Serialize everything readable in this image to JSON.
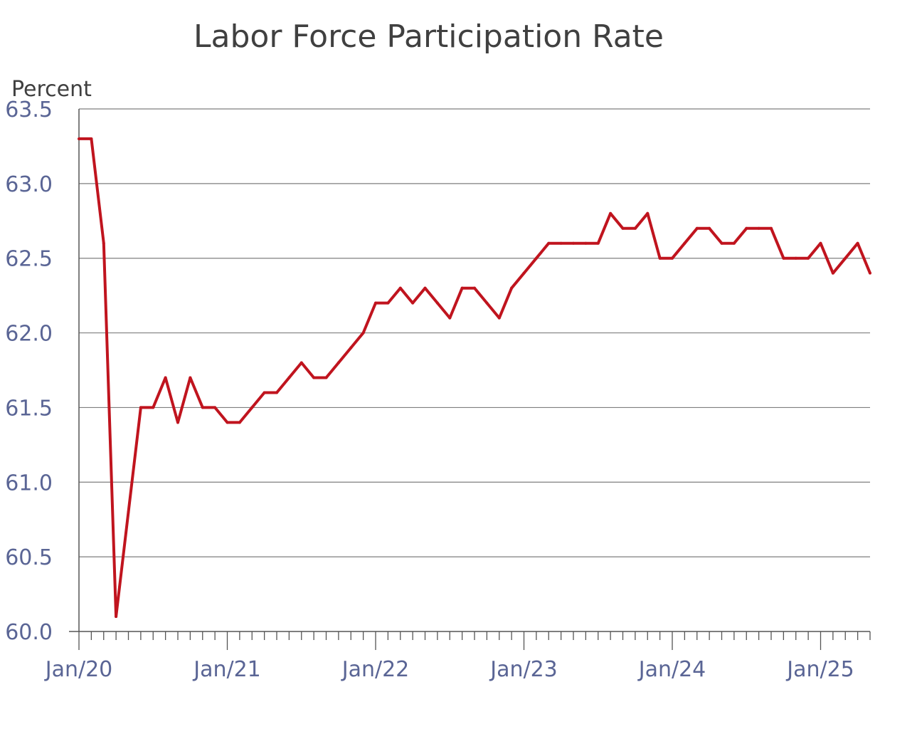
{
  "chart_data": {
    "type": "line",
    "title": "Labor Force Participation Rate",
    "ylabel": "Percent",
    "xlabel": "",
    "ylim": [
      60.0,
      63.5
    ],
    "yticks": [
      "60.0",
      "60.5",
      "61.0",
      "61.5",
      "62.0",
      "62.5",
      "63.0",
      "63.5"
    ],
    "xtick_labels": [
      "Jan/20",
      "Jan/21",
      "Jan/22",
      "Jan/23",
      "Jan/24",
      "Jan/25"
    ],
    "grid": true,
    "series": [
      {
        "color": "#c0141e",
        "x_start": "Jan/20",
        "frequency": "monthly",
        "values": [
          63.3,
          63.3,
          62.6,
          60.1,
          60.8,
          61.5,
          61.5,
          61.7,
          61.4,
          61.7,
          61.5,
          61.5,
          61.4,
          61.4,
          61.5,
          61.6,
          61.6,
          61.7,
          61.8,
          61.7,
          61.7,
          61.8,
          61.9,
          62.0,
          62.2,
          62.2,
          62.3,
          62.2,
          62.3,
          62.2,
          62.1,
          62.3,
          62.3,
          62.2,
          62.1,
          62.3,
          62.4,
          62.5,
          62.6,
          62.6,
          62.6,
          62.6,
          62.6,
          62.8,
          62.7,
          62.7,
          62.8,
          62.5,
          62.5,
          62.6,
          62.7,
          62.7,
          62.6,
          62.6,
          62.7,
          62.7,
          62.7,
          62.5,
          62.5,
          62.5,
          62.6,
          62.4,
          62.5,
          62.6,
          62.4
        ]
      }
    ]
  }
}
